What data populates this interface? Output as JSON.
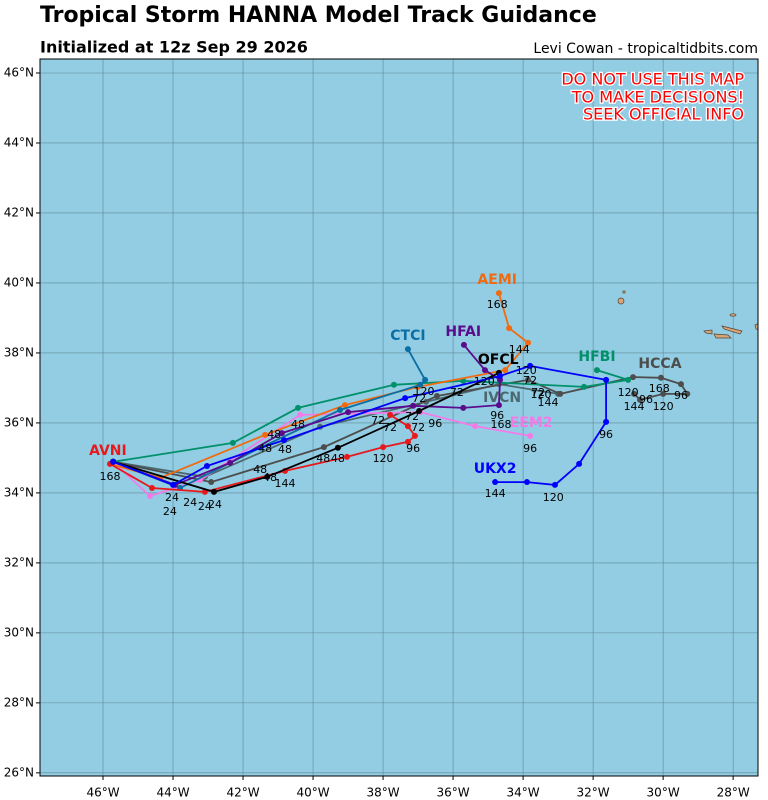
{
  "header": {
    "title": "Tropical Storm HANNA Model Track Guidance",
    "subtitle": "Initialized at 12z Sep 29 2026",
    "credit": "Levi Cowan - tropicaltidbits.com"
  },
  "warning": [
    "DO NOT USE THIS MAP",
    "TO MAKE DECISIONS!",
    "SEEK OFFICIAL INFO"
  ],
  "map": {
    "xlim": [
      -47.8,
      -27.29
    ],
    "ylim": [
      25.91,
      46.4
    ],
    "xticks": [
      {
        "value": -46,
        "label": "46°W"
      },
      {
        "value": -44,
        "label": "44°W"
      },
      {
        "value": -42,
        "label": "42°W"
      },
      {
        "value": -40,
        "label": "40°W"
      },
      {
        "value": -38,
        "label": "38°W"
      },
      {
        "value": -36,
        "label": "36°W"
      },
      {
        "value": -34,
        "label": "34°W"
      },
      {
        "value": -32,
        "label": "32°W"
      },
      {
        "value": -30,
        "label": "30°W"
      },
      {
        "value": -28,
        "label": "28°W"
      }
    ],
    "yticks": [
      {
        "value": 26,
        "label": "26°N"
      },
      {
        "value": 28,
        "label": "28°N"
      },
      {
        "value": 30,
        "label": "30°N"
      },
      {
        "value": 32,
        "label": "32°N"
      },
      {
        "value": 34,
        "label": "34°N"
      },
      {
        "value": 36,
        "label": "36°N"
      },
      {
        "value": 38,
        "label": "38°N"
      },
      {
        "value": 40,
        "label": "40°N"
      },
      {
        "value": 42,
        "label": "42°N"
      },
      {
        "value": 44,
        "label": "44°N"
      },
      {
        "value": 46,
        "label": "46°N"
      }
    ],
    "tracks": [
      {
        "name": "IVCN",
        "color": "#4c6970",
        "name_at": [
          -34.6,
          36.71
        ],
        "points": [
          [
            -45.71,
            34.89
          ],
          [
            -43.09,
            34.46
          ],
          [
            -39.8,
            35.89
          ],
          [
            -36.77,
            36.6
          ],
          [
            -34.69,
            37.11
          ],
          [
            -33.0,
            36.83
          ]
        ]
      },
      {
        "name": "HCCA",
        "color": "#4d4d4d",
        "name_at": [
          -30.09,
          37.69
        ],
        "points": [
          [
            -45.71,
            34.89
          ],
          [
            -42.91,
            34.31
          ],
          [
            -39.69,
            35.31
          ],
          [
            -36.46,
            36.77
          ],
          [
            -33.86,
            37.23
          ],
          [
            -32.94,
            36.83
          ],
          [
            -30.86,
            37.31
          ],
          [
            -30.06,
            37.29
          ],
          [
            -29.49,
            37.11
          ],
          [
            -29.31,
            36.83
          ],
          [
            -30.0,
            36.83
          ],
          [
            -30.66,
            36.66
          ],
          [
            -30.83,
            36.83
          ]
        ]
      },
      {
        "name": "HFBI",
        "color": "#00916b",
        "name_at": [
          -31.89,
          37.89
        ],
        "points": [
          [
            -45.71,
            34.89
          ],
          [
            -42.29,
            35.43
          ],
          [
            -40.43,
            36.43
          ],
          [
            -37.69,
            37.09
          ],
          [
            -35.71,
            37.2
          ],
          [
            -32.26,
            37.03
          ],
          [
            -31.0,
            37.23
          ],
          [
            -31.89,
            37.51
          ]
        ]
      },
      {
        "name": "EEM2",
        "color": "#f47ae8",
        "name_at": [
          -33.77,
          36.0
        ],
        "points": [
          [
            -45.71,
            34.89
          ],
          [
            -44.66,
            33.91
          ],
          [
            -43.23,
            34.37
          ],
          [
            -40.37,
            36.23
          ],
          [
            -36.94,
            36.31
          ],
          [
            -35.37,
            35.91
          ],
          [
            -33.8,
            35.63
          ]
        ]
      },
      {
        "name": "AEMI",
        "color": "#f26a0f",
        "name_at": [
          -34.74,
          40.09
        ],
        "points": [
          [
            -45.8,
            34.83
          ],
          [
            -44.37,
            34.43
          ],
          [
            -41.37,
            35.66
          ],
          [
            -39.09,
            36.51
          ],
          [
            -37.0,
            37.03
          ],
          [
            -34.51,
            37.51
          ],
          [
            -33.86,
            38.29
          ],
          [
            -34.4,
            38.71
          ],
          [
            -34.69,
            39.71
          ]
        ]
      },
      {
        "name": "CTCI",
        "color": "#0b6fa4",
        "name_at": [
          -37.29,
          38.49
        ],
        "points": [
          [
            -45.71,
            34.89
          ],
          [
            -43.8,
            34.14
          ],
          [
            -41.51,
            35.29
          ],
          [
            -39.23,
            36.37
          ],
          [
            -36.94,
            37.09
          ],
          [
            -36.8,
            37.23
          ],
          [
            -37.29,
            38.11
          ]
        ]
      },
      {
        "name": "HFAI",
        "color": "#5b0c8c",
        "name_at": [
          -35.71,
          38.6
        ],
        "points": [
          [
            -45.71,
            34.89
          ],
          [
            -43.94,
            34.23
          ],
          [
            -42.37,
            34.86
          ],
          [
            -40.89,
            35.71
          ],
          [
            -39.0,
            36.31
          ],
          [
            -37.14,
            36.49
          ],
          [
            -35.71,
            36.43
          ],
          [
            -34.69,
            36.51
          ],
          [
            -34.66,
            37.23
          ],
          [
            -35.09,
            37.51
          ],
          [
            -35.69,
            38.23
          ]
        ]
      },
      {
        "name": "AVNI",
        "color": "#e8191c",
        "name_at": [
          -45.86,
          35.2
        ],
        "points": [
          [
            -45.8,
            34.83
          ],
          [
            -44.6,
            34.14
          ],
          [
            -43.09,
            34.03
          ],
          [
            -40.8,
            34.63
          ],
          [
            -39.03,
            35.03
          ],
          [
            -38.0,
            35.31
          ],
          [
            -37.29,
            35.46
          ],
          [
            -37.09,
            35.63
          ],
          [
            -37.29,
            35.91
          ],
          [
            -37.8,
            36.23
          ]
        ]
      },
      {
        "name": "OFCL",
        "color": "#000000",
        "name_at": [
          -34.71,
          37.8
        ],
        "points": [
          [
            -45.71,
            34.89
          ],
          [
            -42.83,
            34.03
          ],
          [
            -41.31,
            34.46
          ],
          [
            -39.29,
            35.29
          ],
          [
            -36.97,
            36.34
          ],
          [
            -34.69,
            37.43
          ]
        ]
      },
      {
        "name": "UKX2",
        "color": "#0000ff",
        "name_at": [
          -34.8,
          34.69
        ],
        "points": [
          [
            -45.71,
            34.89
          ],
          [
            -44.0,
            34.23
          ],
          [
            -43.03,
            34.77
          ],
          [
            -40.83,
            35.51
          ],
          [
            -37.37,
            36.71
          ],
          [
            -34.66,
            37.34
          ],
          [
            -33.8,
            37.63
          ],
          [
            -31.63,
            37.23
          ],
          [
            -31.63,
            36.03
          ],
          [
            -32.4,
            34.83
          ],
          [
            -33.09,
            34.23
          ],
          [
            -33.89,
            34.31
          ],
          [
            -34.8,
            34.31
          ]
        ]
      }
    ],
    "hour_labels": [
      {
        "text": 168,
        "lon": -45.8,
        "lat": 34.46
      },
      {
        "text": 24,
        "lon": -44.03,
        "lat": 33.86
      },
      {
        "text": 24,
        "lon": -43.51,
        "lat": 33.71
      },
      {
        "text": 24,
        "lon": -43.09,
        "lat": 33.6
      },
      {
        "text": 24,
        "lon": -42.8,
        "lat": 33.66
      },
      {
        "text": 24,
        "lon": -44.09,
        "lat": 33.46
      },
      {
        "text": 48,
        "lon": -41.11,
        "lat": 35.66
      },
      {
        "text": 48,
        "lon": -40.43,
        "lat": 35.94
      },
      {
        "text": 48,
        "lon": -41.37,
        "lat": 35.26
      },
      {
        "text": 48,
        "lon": -40.8,
        "lat": 35.23
      },
      {
        "text": 48,
        "lon": -41.51,
        "lat": 34.66
      },
      {
        "text": 48,
        "lon": -41.23,
        "lat": 34.43
      },
      {
        "text": 48,
        "lon": -39.71,
        "lat": 34.97
      },
      {
        "text": 48,
        "lon": -39.29,
        "lat": 34.97
      },
      {
        "text": 144,
        "lon": -40.8,
        "lat": 34.26
      },
      {
        "text": 120,
        "lon": -38.0,
        "lat": 34.97
      },
      {
        "text": 96,
        "lon": -37.14,
        "lat": 35.26
      },
      {
        "text": 72,
        "lon": -37.8,
        "lat": 35.86
      },
      {
        "text": 72,
        "lon": -37.0,
        "lat": 35.86
      },
      {
        "text": 96,
        "lon": -36.51,
        "lat": 35.97
      },
      {
        "text": 72,
        "lon": -38.14,
        "lat": 36.06
      },
      {
        "text": 72,
        "lon": -37.17,
        "lat": 36.17
      },
      {
        "text": 72,
        "lon": -36.97,
        "lat": 36.69
      },
      {
        "text": 72,
        "lon": -35.89,
        "lat": 36.86
      },
      {
        "text": 120,
        "lon": -35.11,
        "lat": 37.17
      },
      {
        "text": 120,
        "lon": -36.83,
        "lat": 36.89
      },
      {
        "text": 96,
        "lon": -34.74,
        "lat": 36.2
      },
      {
        "text": 168,
        "lon": -34.63,
        "lat": 35.94
      },
      {
        "text": 96,
        "lon": -33.8,
        "lat": 35.26
      },
      {
        "text": 144,
        "lon": -34.8,
        "lat": 33.97
      },
      {
        "text": 120,
        "lon": -33.14,
        "lat": 33.86
      },
      {
        "text": 96,
        "lon": -31.63,
        "lat": 35.66
      },
      {
        "text": 168,
        "lon": -34.74,
        "lat": 39.37
      },
      {
        "text": 144,
        "lon": -34.11,
        "lat": 38.09
      },
      {
        "text": 120,
        "lon": -33.91,
        "lat": 37.49
      },
      {
        "text": 72,
        "lon": -33.8,
        "lat": 37.2
      },
      {
        "text": 72,
        "lon": -33.57,
        "lat": 36.86
      },
      {
        "text": 120,
        "lon": -33.49,
        "lat": 36.8
      },
      {
        "text": 144,
        "lon": -33.29,
        "lat": 36.57
      },
      {
        "text": 120,
        "lon": -31.0,
        "lat": 36.86
      },
      {
        "text": 168,
        "lon": -30.11,
        "lat": 36.97
      },
      {
        "text": 144,
        "lon": -30.83,
        "lat": 36.46
      },
      {
        "text": 96,
        "lon": -30.49,
        "lat": 36.66
      },
      {
        "text": 120,
        "lon": -30.0,
        "lat": 36.46
      },
      {
        "text": 96,
        "lon": -29.49,
        "lat": 36.77
      }
    ]
  }
}
